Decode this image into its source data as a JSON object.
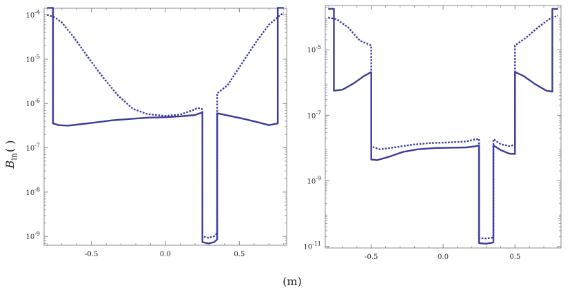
{
  "figure": {
    "ylabel_main": "B",
    "ylabel_sub": "in",
    "ylabel_unit": "( )",
    "xlabel": "(m)"
  },
  "style": {
    "series_color": "#3b3b9a",
    "axis_color": "#888888"
  },
  "chart_data": [
    {
      "type": "line",
      "yscale": "log",
      "xlim": [
        -0.82,
        0.82
      ],
      "ylim_exp": [
        -9.2,
        -3.85
      ],
      "xticks": [
        -0.5,
        0.0,
        0.5
      ],
      "xtick_labels": [
        "-0.5",
        "0.0",
        "0.5"
      ],
      "yticks_exp": [
        -9,
        -8,
        -7,
        -6,
        -5,
        -4
      ],
      "ytick_labels": [
        {
          "base": "10",
          "exp": "-9"
        },
        {
          "base": "10",
          "exp": "-8"
        },
        {
          "base": "10",
          "exp": "-7"
        },
        {
          "base": "10",
          "exp": "-6"
        },
        {
          "base": "10",
          "exp": "-5"
        },
        {
          "base": "10",
          "exp": "-4"
        }
      ],
      "series": [
        {
          "style": "solid",
          "points": [
            [
              -0.8,
              -3.84
            ],
            [
              -0.76,
              -3.84
            ],
            [
              -0.76,
              -6.45
            ],
            [
              -0.72,
              -6.49
            ],
            [
              -0.66,
              -6.5
            ],
            [
              -0.58,
              -6.47
            ],
            [
              -0.48,
              -6.43
            ],
            [
              -0.36,
              -6.38
            ],
            [
              -0.24,
              -6.35
            ],
            [
              -0.12,
              -6.32
            ],
            [
              0.0,
              -6.31
            ],
            [
              0.1,
              -6.29
            ],
            [
              0.2,
              -6.26
            ],
            [
              0.25,
              -6.2
            ],
            [
              0.25,
              -9.13
            ],
            [
              0.29,
              -9.16
            ],
            [
              0.33,
              -9.13
            ],
            [
              0.35,
              -9.07
            ],
            [
              0.35,
              -6.22
            ],
            [
              0.42,
              -6.27
            ],
            [
              0.52,
              -6.34
            ],
            [
              0.62,
              -6.42
            ],
            [
              0.7,
              -6.49
            ],
            [
              0.76,
              -6.45
            ],
            [
              0.76,
              -3.84
            ],
            [
              0.8,
              -3.84
            ]
          ]
        },
        {
          "style": "dotted",
          "points": [
            [
              -0.8,
              -4.0
            ],
            [
              -0.75,
              -4.05
            ],
            [
              -0.7,
              -4.17
            ],
            [
              -0.62,
              -4.5
            ],
            [
              -0.52,
              -4.97
            ],
            [
              -0.42,
              -5.42
            ],
            [
              -0.32,
              -5.82
            ],
            [
              -0.22,
              -6.12
            ],
            [
              -0.12,
              -6.24
            ],
            [
              0.0,
              -6.28
            ],
            [
              0.1,
              -6.25
            ],
            [
              0.18,
              -6.16
            ],
            [
              0.22,
              -6.1
            ],
            [
              0.25,
              -6.13
            ],
            [
              0.25,
              -9.0
            ],
            [
              0.29,
              -9.03
            ],
            [
              0.33,
              -9.0
            ],
            [
              0.35,
              -8.92
            ],
            [
              0.35,
              -5.77
            ],
            [
              0.42,
              -5.59
            ],
            [
              0.52,
              -5.08
            ],
            [
              0.62,
              -4.58
            ],
            [
              0.7,
              -4.22
            ],
            [
              0.76,
              -4.05
            ],
            [
              0.8,
              -3.95
            ]
          ]
        }
      ]
    },
    {
      "type": "line",
      "yscale": "log",
      "xlim": [
        -0.82,
        0.82
      ],
      "ylim_exp": [
        -11.05,
        -3.65
      ],
      "xticks": [
        -0.5,
        0.0,
        0.5
      ],
      "xtick_labels": [
        "-0.5",
        "0.0",
        "0.5"
      ],
      "yticks_exp": [
        -11,
        -9,
        -7,
        -5
      ],
      "ytick_labels": [
        {
          "base": "10",
          "exp": "-11"
        },
        {
          "base": "10",
          "exp": "-9"
        },
        {
          "base": "10",
          "exp": "-7"
        },
        {
          "base": "10",
          "exp": "-5"
        }
      ],
      "series": [
        {
          "style": "solid",
          "points": [
            [
              -0.8,
              -3.75
            ],
            [
              -0.76,
              -3.75
            ],
            [
              -0.76,
              -6.25
            ],
            [
              -0.7,
              -6.22
            ],
            [
              -0.62,
              -6.02
            ],
            [
              -0.55,
              -5.8
            ],
            [
              -0.5,
              -5.68
            ],
            [
              -0.5,
              -8.35
            ],
            [
              -0.46,
              -8.37
            ],
            [
              -0.38,
              -8.27
            ],
            [
              -0.28,
              -8.12
            ],
            [
              -0.18,
              -8.04
            ],
            [
              -0.06,
              -8.0
            ],
            [
              0.06,
              -7.99
            ],
            [
              0.16,
              -7.98
            ],
            [
              0.22,
              -7.95
            ],
            [
              0.25,
              -7.92
            ],
            [
              0.25,
              -10.9
            ],
            [
              0.3,
              -10.92
            ],
            [
              0.35,
              -10.88
            ],
            [
              0.35,
              -7.92
            ],
            [
              0.4,
              -8.06
            ],
            [
              0.46,
              -8.17
            ],
            [
              0.5,
              -8.18
            ],
            [
              0.5,
              -5.68
            ],
            [
              0.56,
              -5.8
            ],
            [
              0.64,
              -6.05
            ],
            [
              0.72,
              -6.25
            ],
            [
              0.76,
              -6.28
            ],
            [
              0.76,
              -3.75
            ],
            [
              0.8,
              -3.75
            ]
          ]
        },
        {
          "style": "dotted",
          "points": [
            [
              -0.8,
              -4.02
            ],
            [
              -0.74,
              -4.07
            ],
            [
              -0.66,
              -4.32
            ],
            [
              -0.58,
              -4.72
            ],
            [
              -0.5,
              -4.87
            ],
            [
              -0.5,
              -7.95
            ],
            [
              -0.44,
              -8.04
            ],
            [
              -0.34,
              -7.98
            ],
            [
              -0.22,
              -7.9
            ],
            [
              -0.1,
              -7.85
            ],
            [
              0.04,
              -7.83
            ],
            [
              0.16,
              -7.8
            ],
            [
              0.22,
              -7.74
            ],
            [
              0.25,
              -7.72
            ],
            [
              0.25,
              -10.75
            ],
            [
              0.3,
              -10.76
            ],
            [
              0.35,
              -10.73
            ],
            [
              0.35,
              -7.73
            ],
            [
              0.4,
              -7.88
            ],
            [
              0.46,
              -7.94
            ],
            [
              0.5,
              -7.9
            ],
            [
              0.5,
              -4.87
            ],
            [
              0.58,
              -4.62
            ],
            [
              0.66,
              -4.32
            ],
            [
              0.74,
              -4.06
            ],
            [
              0.8,
              -3.95
            ]
          ]
        }
      ]
    }
  ]
}
